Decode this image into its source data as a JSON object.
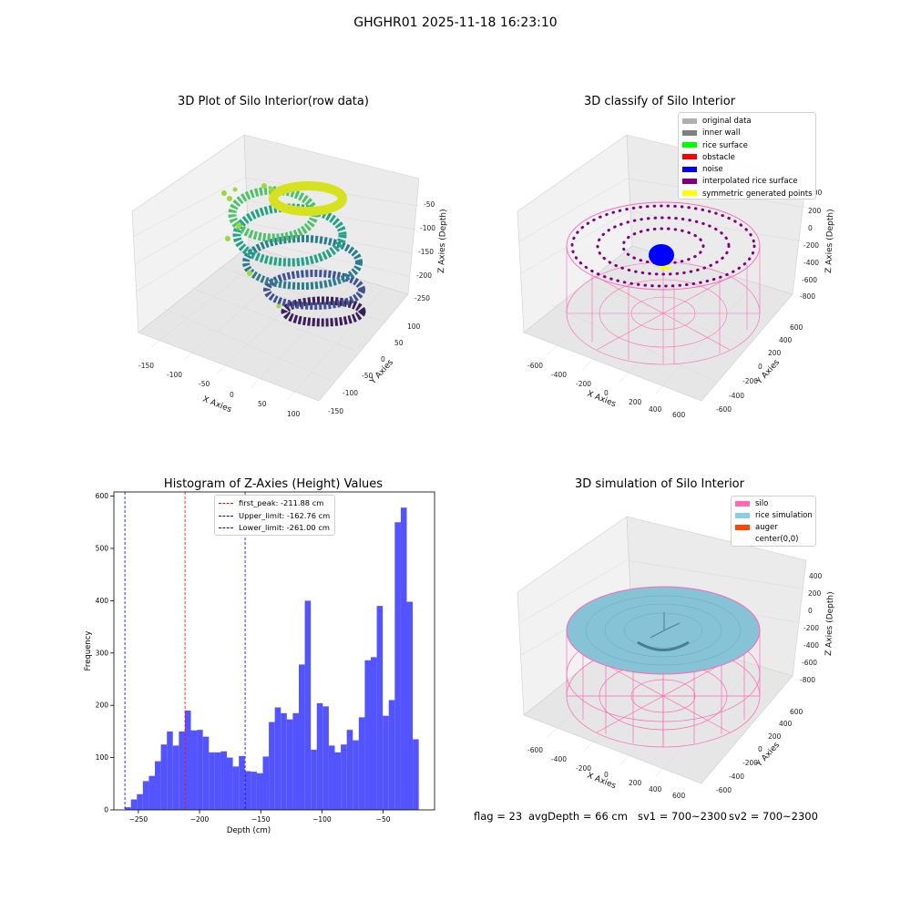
{
  "suptitle": "GHGHR01 2025-11-18 16:23:10",
  "panels": {
    "raw": {
      "title": "3D Plot of Silo Interior(row data)",
      "xlabel": "X Axies",
      "ylabel": "Y Axies",
      "zlabel": "Z Axies (Depth)",
      "xticks": [
        "-150",
        "-100",
        "-50",
        "0",
        "50",
        "100"
      ],
      "yticks": [
        "-150",
        "-100",
        "-50",
        "0",
        "50",
        "100"
      ],
      "zticks": [
        "-50",
        "-100",
        "-150",
        "-200",
        "-250"
      ]
    },
    "classify": {
      "title": "3D classify of Silo Interior",
      "xlabel": "X Axies",
      "ylabel": "Y Axies",
      "zlabel": "Z Axies (Depth)",
      "xticks": [
        "-600",
        "-400",
        "-200",
        "0",
        "200",
        "400",
        "600"
      ],
      "yticks": [
        "-600",
        "-400",
        "-200",
        "0",
        "200",
        "400",
        "600"
      ],
      "zticks": [
        "400",
        "200",
        "0",
        "-200",
        "-400",
        "-600",
        "-800"
      ],
      "legend": [
        {
          "label": "original data",
          "color": "#b0b0b0"
        },
        {
          "label": "inner wall",
          "color": "#808080"
        },
        {
          "label": "rice surface",
          "color": "#00ff00"
        },
        {
          "label": "obstacle",
          "color": "#ff0000"
        },
        {
          "label": "noise",
          "color": "#0000ff"
        },
        {
          "label": "interpolated rice surface",
          "color": "#800080"
        },
        {
          "label": "symmetric generated points",
          "color": "#ffff00"
        }
      ]
    },
    "simulation": {
      "title": "3D simulation of Silo Interior",
      "xlabel": "X Axies",
      "ylabel": "Y Axies",
      "zlabel": "Z Axies (Depth)",
      "xticks": [
        "-600",
        "-400",
        "-200",
        "0",
        "200",
        "400",
        "600"
      ],
      "yticks": [
        "-600",
        "-400",
        "-200",
        "0",
        "200",
        "400",
        "600"
      ],
      "zticks": [
        "400",
        "200",
        "0",
        "-200",
        "-400",
        "-600",
        "-800"
      ],
      "legend": [
        {
          "label": "silo",
          "color": "#ff69b4"
        },
        {
          "label": "rice simulation",
          "color": "#87ceeb"
        },
        {
          "label": "auger",
          "color": "#ff4500"
        },
        {
          "label": "center(0,0)",
          "color": "#ffffff"
        }
      ]
    }
  },
  "status": {
    "flag": "flag = 23",
    "avg_depth": "avgDepth = 66 cm",
    "sv1": "sv1 = 700~2300",
    "sv2": "sv2 = 700~2300"
  },
  "chart_data": {
    "type": "bar",
    "title": "Histogram of Z-Axies (Height) Values",
    "xlabel": "Depth (cm)",
    "ylabel": "Frequency",
    "xlim": [
      -270,
      -8
    ],
    "ylim": [
      0,
      608
    ],
    "bin_start": -261.0,
    "bin_width": 4.9,
    "bar_color": "#4b4bff",
    "xticks": [
      -250,
      -200,
      -150,
      -100,
      -50
    ],
    "yticks": [
      0,
      100,
      200,
      300,
      400,
      500,
      600
    ],
    "values": [
      5,
      20,
      30,
      55,
      65,
      93,
      125,
      150,
      123,
      150,
      190,
      152,
      153,
      140,
      110,
      110,
      112,
      100,
      83,
      103,
      74,
      73,
      70,
      102,
      168,
      196,
      185,
      173,
      185,
      278,
      400,
      115,
      204,
      198,
      123,
      110,
      125,
      153,
      133,
      177,
      286,
      292,
      390,
      180,
      210,
      550,
      578,
      398,
      135
    ],
    "vlines": [
      {
        "label": "first_peak: -211.88 cm",
        "x": -211.88,
        "color": "#ff0000"
      },
      {
        "label": "Upper_limit: -162.76 cm",
        "x": -162.76,
        "color": "#0000ff"
      },
      {
        "label": "Lower_limit: -261.00 cm",
        "x": -261.0,
        "color": "#0000ff"
      }
    ]
  }
}
